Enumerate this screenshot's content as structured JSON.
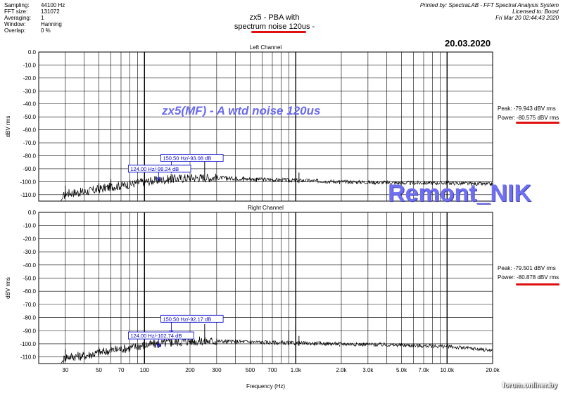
{
  "header": {
    "info": [
      {
        "label": "Sampling:",
        "value": "44100 Hz"
      },
      {
        "label": "FFT size:",
        "value": "131072"
      },
      {
        "label": "Averaging:",
        "value": "1"
      },
      {
        "label": "Window:",
        "value": "Hanning"
      },
      {
        "label": "Overlap:",
        "value": "0 %"
      }
    ],
    "title_line1": "zx5 - PBA with",
    "title_line2": "spectrum noise 120us -",
    "printed_line1": "Printed by: SpectraLAB - FFT Spectral Analysis System",
    "printed_line2": "Licensed to: Boost",
    "printed_line3": "Fri Mar 20 02:44:43 2020",
    "date": "20.03.2020",
    "toolbar_icons": [
      "zoom-box-icon",
      "zoom-in-icon",
      "zoom-out-icon",
      "menu-arrow-icon"
    ],
    "annotation_color": "#e01010"
  },
  "overlay_text": "zx5(MF) - A wtd noise 120us",
  "watermark": "Remont_NIK",
  "forum_label": "forum.onliner.by",
  "colors": {
    "overlay": "#6a6af0",
    "marker": "#0000cc",
    "trace": "#000000",
    "grid": "#000000"
  },
  "chart_data": [
    {
      "type": "line",
      "title": "Left Channel",
      "xlabel": "",
      "ylabel": "dBV rms",
      "xscale": "log",
      "xlim": [
        20,
        20000
      ],
      "ylim": [
        -115,
        0
      ],
      "yticks": [
        0,
        -10,
        -20,
        -30,
        -40,
        -50,
        -60,
        -70,
        -80,
        -90,
        -100,
        -110
      ],
      "ytick_labels": [
        "0.0",
        "-10.0",
        "-20.0",
        "-30.0",
        "-40.0",
        "-50.0",
        "-60.0",
        "-70.0",
        "-80.0",
        "-90.0",
        "-100.0",
        "-110.0"
      ],
      "stats": {
        "peak": "Peak: -79.943 dBV rms",
        "power": "Power: -80.575 dBV rms"
      },
      "markers": [
        {
          "label": "150.50 Hz/-93.08 dB",
          "x": 150.5,
          "y": -93.08
        },
        {
          "label": "124.00 Hz/-99.24 dB",
          "x": 124.0,
          "y": -99.24
        }
      ],
      "spikes": [
        [
          30,
          -103
        ],
        [
          50,
          -101
        ],
        [
          60,
          -98
        ],
        [
          100,
          -94
        ],
        [
          150,
          -94
        ],
        [
          200,
          -96
        ],
        [
          250,
          -83
        ],
        [
          300,
          -95
        ],
        [
          350,
          -96
        ],
        [
          400,
          -96
        ],
        [
          450,
          -96
        ],
        [
          500,
          -97
        ],
        [
          550,
          -97
        ],
        [
          900,
          -90
        ],
        [
          1000,
          -86
        ],
        [
          1050,
          -93
        ],
        [
          1950,
          -100
        ]
      ],
      "floor": [
        [
          20,
          -115
        ],
        [
          28,
          -115
        ],
        [
          30,
          -109
        ],
        [
          40,
          -108
        ],
        [
          60,
          -104
        ],
        [
          80,
          -102
        ],
        [
          100,
          -100
        ],
        [
          150,
          -98
        ],
        [
          200,
          -97
        ],
        [
          300,
          -97
        ],
        [
          500,
          -98
        ],
        [
          700,
          -98.5
        ],
        [
          1000,
          -99
        ],
        [
          2000,
          -100
        ],
        [
          5000,
          -101
        ],
        [
          10000,
          -101
        ],
        [
          20000,
          -102
        ]
      ]
    },
    {
      "type": "line",
      "title": "Right Channel",
      "xlabel": "Frequency (Hz)",
      "ylabel": "dBV rms",
      "xscale": "log",
      "xlim": [
        20,
        20000
      ],
      "ylim": [
        -115,
        0
      ],
      "yticks": [
        0,
        -10,
        -20,
        -30,
        -40,
        -50,
        -60,
        -70,
        -80,
        -90,
        -100,
        -110
      ],
      "ytick_labels": [
        "0.0",
        "-10.0",
        "-20.0",
        "-30.0",
        "-40.0",
        "-50.0",
        "-60.0",
        "-70.0",
        "-80.0",
        "-90.0",
        "-100.0",
        "-110.0"
      ],
      "xticks": [
        30,
        50,
        70,
        100,
        200,
        300,
        500,
        700,
        1000,
        2000,
        3000,
        5000,
        7000,
        10000,
        20000
      ],
      "xtick_labels": [
        "30",
        "50",
        "70",
        "100",
        "200",
        "300",
        "500",
        "700",
        "1.0k",
        "2.0k",
        "3.0k",
        "5.0k",
        "7.0k",
        "10.0k",
        "20.0k"
      ],
      "stats": {
        "peak": "Peak: -79.501 dBV rms",
        "power": "Power: -80.878 dBV rms"
      },
      "markers": [
        {
          "label": "150.50 Hz/-92.17 dB",
          "x": 150.5,
          "y": -92.17
        },
        {
          "label": "124.00 Hz/-102.74 dB",
          "x": 124.0,
          "y": -102.74
        }
      ],
      "spikes": [
        [
          30,
          -104
        ],
        [
          50,
          -102
        ],
        [
          60,
          -99
        ],
        [
          100,
          -95
        ],
        [
          150,
          -95
        ],
        [
          200,
          -98
        ],
        [
          250,
          -85
        ],
        [
          300,
          -96
        ],
        [
          350,
          -97
        ],
        [
          400,
          -97
        ],
        [
          500,
          -97
        ],
        [
          900,
          -90
        ],
        [
          1000,
          -86
        ],
        [
          1050,
          -94
        ],
        [
          1950,
          -101
        ]
      ],
      "floor": [
        [
          20,
          -115
        ],
        [
          28,
          -115
        ],
        [
          30,
          -110
        ],
        [
          40,
          -109
        ],
        [
          60,
          -105
        ],
        [
          80,
          -103
        ],
        [
          100,
          -101
        ],
        [
          150,
          -99
        ],
        [
          200,
          -98
        ],
        [
          300,
          -98
        ],
        [
          500,
          -98.5
        ],
        [
          700,
          -99
        ],
        [
          1000,
          -99.5
        ],
        [
          2000,
          -100
        ],
        [
          5000,
          -101
        ],
        [
          10000,
          -102
        ],
        [
          20000,
          -105
        ]
      ]
    }
  ]
}
